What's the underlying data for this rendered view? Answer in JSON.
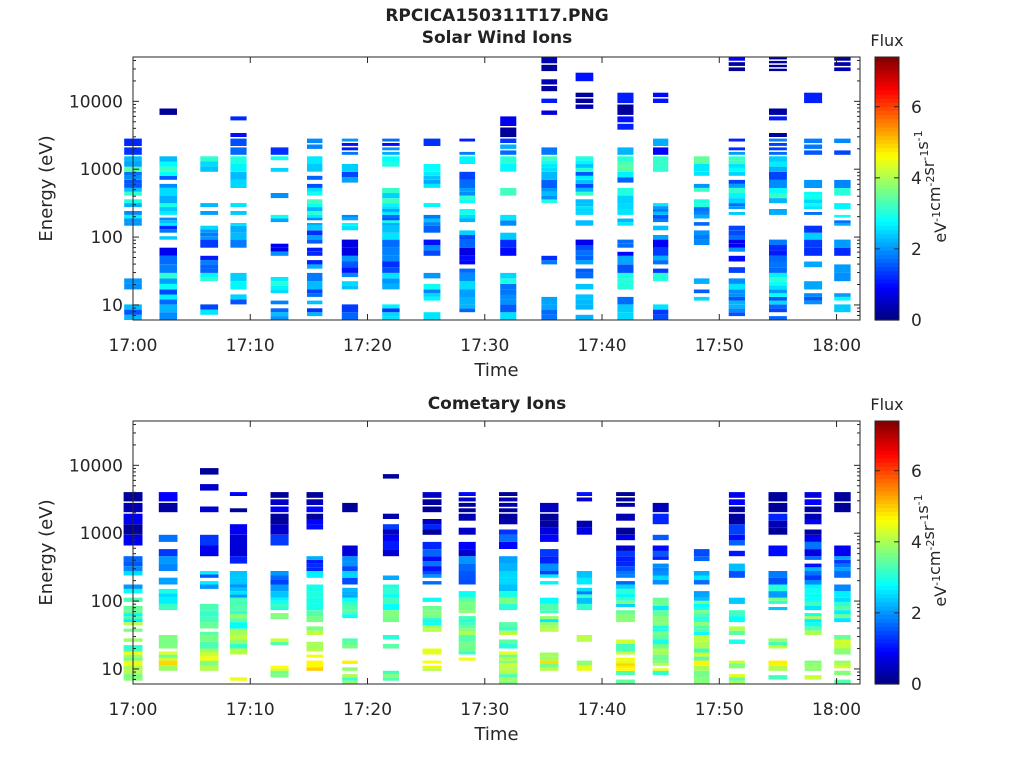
{
  "figure_title": "RPCICA150311T17.PNG",
  "chart_data": [
    {
      "type": "heatmap",
      "title": "Solar Wind Ions",
      "xlabel": "Time",
      "ylabel": "Energy (eV)",
      "yscale": "log",
      "ylim": [
        6,
        45000
      ],
      "xlim": [
        "17:00",
        "18:02"
      ],
      "x_ticks": [
        "17:00",
        "17:10",
        "17:20",
        "17:30",
        "17:40",
        "17:50",
        "18:00"
      ],
      "y_ticks": [
        "10",
        "100",
        "1000",
        "10000"
      ],
      "colorbar": {
        "title": "Flux",
        "label": "eV-1cm-2sr-1s-1",
        "ticks": [
          "0",
          "2",
          "4",
          "6"
        ],
        "range": [
          0,
          7.4
        ],
        "colormap": "jet"
      },
      "time_columns_minutes": [
        0,
        3,
        6.5,
        9,
        12.5,
        15.5,
        18.5,
        22,
        25.5,
        28.5,
        32,
        35.5,
        38.5,
        42,
        45,
        48.5,
        51.5,
        55,
        58,
        60.5
      ],
      "energy_bands_eV": [
        8,
        13,
        22,
        40,
        70,
        120,
        180,
        250,
        400,
        700,
        1200,
        2000,
        4000,
        9000,
        20000,
        35000
      ],
      "flux_profile_by_band": [
        2.0,
        2.1,
        2.4,
        1.6,
        1.4,
        1.9,
        2.2,
        2.4,
        2.6,
        2.1,
        2.8,
        1.6,
        0.6,
        0.5,
        0.4,
        0.3
      ],
      "note_region": "high-energy flux >3000 eV present mainly after 17:30"
    },
    {
      "type": "heatmap",
      "title": "Cometary Ions",
      "xlabel": "Time",
      "ylabel": "Energy (eV)",
      "yscale": "log",
      "ylim": [
        6,
        45000
      ],
      "xlim": [
        "17:00",
        "18:02"
      ],
      "x_ticks": [
        "17:00",
        "17:10",
        "17:20",
        "17:30",
        "17:40",
        "17:50",
        "18:00"
      ],
      "y_ticks": [
        "10",
        "100",
        "1000",
        "10000"
      ],
      "colorbar": {
        "title": "Flux",
        "label": "eV-1cm-2sr-1s-1",
        "ticks": [
          "0",
          "2",
          "4",
          "6"
        ],
        "range": [
          0,
          7.4
        ],
        "colormap": "jet"
      },
      "time_columns_minutes": [
        0,
        3,
        6.5,
        9,
        12.5,
        15.5,
        18.5,
        22,
        25.5,
        28.5,
        32,
        35.5,
        38.5,
        42,
        45,
        48.5,
        51.5,
        55,
        58,
        60.5
      ],
      "energy_bands_eV": [
        8,
        11,
        16,
        25,
        40,
        60,
        90,
        140,
        220,
        350,
        600,
        1500,
        2500,
        6500
      ],
      "flux_profile_by_band": [
        3.8,
        4.3,
        3.9,
        3.6,
        3.5,
        3.3,
        3.0,
        2.5,
        2.0,
        1.6,
        1.2,
        0.7,
        0.4,
        0.3
      ]
    }
  ]
}
